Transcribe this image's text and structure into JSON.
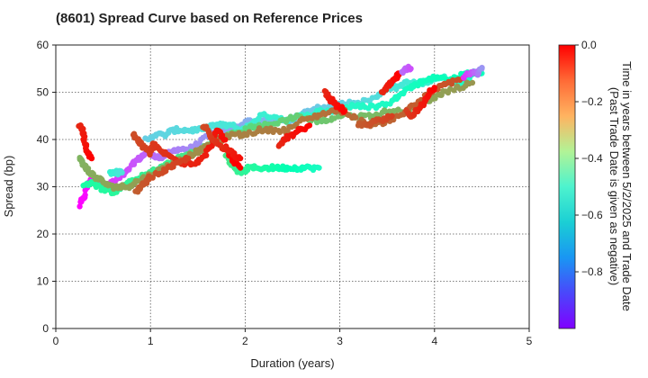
{
  "chart_data": {
    "type": "scatter",
    "title": "(8601)   Spread Curve based on Reference Prices",
    "xlabel": "Duration (years)",
    "ylabel": "Spread (bp)",
    "xlim": [
      0,
      5
    ],
    "ylim": [
      0,
      60
    ],
    "xticks": [
      "0",
      "1",
      "2",
      "3",
      "4",
      "5"
    ],
    "yticks": [
      "0",
      "10",
      "20",
      "30",
      "40",
      "50",
      "60"
    ],
    "grid": true,
    "colorbar": {
      "label_line1": "Time in years between 5/2/2025 and Trade Date",
      "label_line2": "(Past Trade Date is given as negative)",
      "range": [
        -1.0,
        0.0
      ],
      "ticks": [
        "0.0",
        "−0.2",
        "−0.4",
        "−0.6",
        "−0.8"
      ],
      "colormap": "rainbow"
    },
    "segments": [
      {
        "points": [
          [
            0.25,
            26
          ],
          [
            0.3,
            28
          ],
          [
            0.35,
            31
          ],
          [
            0.4,
            32
          ],
          [
            0.45,
            31
          ],
          [
            0.5,
            30
          ],
          [
            0.55,
            30
          ],
          [
            0.6,
            31
          ],
          [
            0.68,
            32
          ],
          [
            0.75,
            33
          ],
          [
            0.82,
            35
          ],
          [
            0.88,
            36
          ],
          [
            0.95,
            37
          ],
          [
            1.02,
            37
          ],
          [
            1.1,
            36
          ],
          [
            1.18,
            37
          ],
          [
            1.28,
            38
          ],
          [
            1.4,
            38
          ],
          [
            1.5,
            39
          ],
          [
            1.62,
            41
          ],
          [
            1.72,
            42
          ],
          [
            1.85,
            42
          ],
          [
            1.95,
            43
          ],
          [
            2.05,
            44
          ],
          [
            2.2,
            44
          ],
          [
            2.35,
            44
          ],
          [
            2.5,
            44
          ],
          [
            2.65,
            46
          ],
          [
            2.8,
            47
          ],
          [
            2.95,
            47
          ],
          [
            3.1,
            48
          ],
          [
            3.25,
            48
          ],
          [
            3.4,
            49
          ],
          [
            3.5,
            51
          ],
          [
            3.6,
            51
          ],
          [
            3.7,
            52
          ],
          [
            3.8,
            52
          ],
          [
            3.9,
            52
          ],
          [
            4.0,
            53
          ],
          [
            4.1,
            53
          ],
          [
            4.2,
            52
          ],
          [
            4.3,
            52
          ],
          [
            4.4,
            54
          ],
          [
            4.5,
            54
          ]
        ],
        "t_start": -1.0,
        "t_end": -0.55
      },
      {
        "points": [
          [
            0.95,
            40
          ],
          [
            1.05,
            41
          ],
          [
            1.15,
            41
          ],
          [
            1.25,
            42
          ],
          [
            1.35,
            42
          ],
          [
            1.45,
            42
          ],
          [
            1.55,
            42
          ],
          [
            1.65,
            43
          ],
          [
            1.75,
            43
          ],
          [
            1.85,
            43
          ],
          [
            1.95,
            42
          ],
          [
            2.05,
            43
          ],
          [
            2.15,
            45
          ],
          [
            2.3,
            45
          ],
          [
            2.45,
            44
          ],
          [
            2.6,
            45
          ],
          [
            2.8,
            46
          ],
          [
            2.95,
            46
          ],
          [
            3.1,
            47
          ],
          [
            3.25,
            47
          ],
          [
            3.4,
            47
          ],
          [
            3.55,
            48
          ],
          [
            3.65,
            50
          ],
          [
            3.75,
            51
          ],
          [
            3.85,
            52
          ],
          [
            3.95,
            53
          ],
          [
            4.05,
            53
          ],
          [
            4.2,
            53
          ],
          [
            4.35,
            54
          ],
          [
            4.48,
            54
          ]
        ],
        "t_start": -0.7,
        "t_end": -0.5
      },
      {
        "points": [
          [
            0.3,
            30
          ],
          [
            0.38,
            31
          ],
          [
            0.46,
            30
          ],
          [
            0.55,
            29
          ],
          [
            0.62,
            29
          ],
          [
            0.7,
            30
          ],
          [
            0.8,
            31
          ],
          [
            0.9,
            32
          ],
          [
            1.0,
            33
          ],
          [
            1.1,
            34
          ],
          [
            1.2,
            35
          ],
          [
            1.3,
            36
          ],
          [
            1.4,
            37
          ],
          [
            1.55,
            38
          ],
          [
            1.7,
            40
          ],
          [
            1.85,
            41
          ],
          [
            2.0,
            42
          ],
          [
            2.1,
            43
          ],
          [
            2.25,
            43
          ],
          [
            2.4,
            44
          ],
          [
            2.55,
            45
          ],
          [
            2.7,
            44
          ],
          [
            2.85,
            44
          ],
          [
            3.0,
            45
          ],
          [
            3.2,
            45
          ],
          [
            3.35,
            45
          ],
          [
            3.5,
            46
          ],
          [
            3.65,
            46
          ],
          [
            3.8,
            47
          ],
          [
            3.9,
            48
          ],
          [
            4.0,
            49
          ],
          [
            4.1,
            50
          ],
          [
            4.25,
            51
          ],
          [
            4.4,
            52
          ]
        ],
        "t_start": -0.45,
        "t_end": -0.2
      },
      {
        "points": [
          [
            1.8,
            37
          ],
          [
            1.85,
            35
          ],
          [
            1.9,
            34
          ],
          [
            1.95,
            33
          ],
          [
            2.05,
            34
          ],
          [
            2.15,
            34
          ],
          [
            2.25,
            34
          ],
          [
            2.35,
            34
          ],
          [
            2.45,
            34
          ],
          [
            2.55,
            34
          ],
          [
            2.65,
            34
          ],
          [
            2.78,
            34
          ]
        ],
        "t_start": -0.35,
        "t_end": -0.55
      },
      {
        "points": [
          [
            0.25,
            36
          ],
          [
            0.28,
            35
          ],
          [
            0.32,
            34
          ],
          [
            0.36,
            33
          ],
          [
            0.42,
            32
          ],
          [
            0.5,
            31
          ],
          [
            0.58,
            30
          ],
          [
            0.66,
            30
          ],
          [
            0.75,
            30
          ],
          [
            0.85,
            31
          ],
          [
            0.95,
            32
          ],
          [
            1.05,
            33
          ],
          [
            1.15,
            34
          ],
          [
            1.25,
            35
          ],
          [
            1.35,
            36
          ],
          [
            1.45,
            37
          ],
          [
            1.55,
            38
          ],
          [
            1.65,
            39
          ],
          [
            1.75,
            40
          ],
          [
            1.85,
            41
          ],
          [
            2.0,
            41
          ],
          [
            2.15,
            42
          ],
          [
            2.3,
            42
          ],
          [
            2.45,
            42
          ],
          [
            2.6,
            44
          ],
          [
            2.75,
            45
          ],
          [
            2.9,
            46
          ],
          [
            3.05,
            46
          ],
          [
            3.2,
            44
          ],
          [
            3.35,
            43
          ],
          [
            3.5,
            44
          ],
          [
            3.65,
            45
          ],
          [
            3.75,
            47
          ],
          [
            3.85,
            48
          ],
          [
            3.95,
            50
          ],
          [
            4.05,
            51
          ],
          [
            4.15,
            52
          ],
          [
            4.3,
            53
          ]
        ],
        "t_start": -0.25,
        "t_end": -0.1
      },
      {
        "points": [
          [
            0.25,
            43
          ],
          [
            0.28,
            42
          ],
          [
            0.3,
            40
          ],
          [
            0.32,
            38
          ],
          [
            0.35,
            37
          ],
          [
            0.38,
            36
          ]
        ],
        "t_start": -0.05,
        "t_end": 0.0
      },
      {
        "points": [
          [
            0.82,
            41
          ],
          [
            0.86,
            40
          ],
          [
            0.9,
            39
          ],
          [
            0.95,
            38
          ],
          [
            1.0,
            37
          ],
          [
            1.02,
            39
          ],
          [
            1.08,
            38
          ],
          [
            1.15,
            37
          ],
          [
            1.25,
            36
          ],
          [
            1.35,
            35
          ],
          [
            1.45,
            35
          ],
          [
            1.55,
            36
          ],
          [
            1.62,
            38
          ],
          [
            1.68,
            41
          ],
          [
            1.72,
            42
          ],
          [
            1.78,
            40
          ],
          [
            1.83,
            37
          ],
          [
            1.88,
            35
          ],
          [
            1.95,
            34
          ]
        ],
        "t_start": -0.1,
        "t_end": 0.0
      },
      {
        "points": [
          [
            0.85,
            29
          ],
          [
            0.9,
            30
          ],
          [
            0.95,
            31
          ],
          [
            1.0,
            32
          ],
          [
            1.1,
            33
          ],
          [
            1.2,
            34
          ],
          [
            1.3,
            35
          ],
          [
            1.4,
            36
          ]
        ],
        "t_start": -0.12,
        "t_end": -0.08
      },
      {
        "points": [
          [
            1.55,
            43
          ],
          [
            1.6,
            42
          ],
          [
            1.65,
            40
          ],
          [
            1.72,
            39
          ],
          [
            1.8,
            38
          ],
          [
            1.88,
            37
          ],
          [
            1.95,
            36
          ]
        ],
        "t_start": -0.1,
        "t_end": -0.02
      },
      {
        "points": [
          [
            2.35,
            39
          ],
          [
            2.42,
            40
          ],
          [
            2.5,
            41
          ],
          [
            2.58,
            42
          ],
          [
            2.68,
            43
          ]
        ],
        "t_start": -0.05,
        "t_end": 0.0
      },
      {
        "points": [
          [
            2.85,
            50
          ],
          [
            2.88,
            49
          ],
          [
            2.92,
            48
          ],
          [
            2.98,
            47
          ],
          [
            3.05,
            46
          ]
        ],
        "t_start": -0.05,
        "t_end": 0.0
      },
      {
        "points": [
          [
            3.45,
            50
          ],
          [
            3.5,
            51
          ],
          [
            3.55,
            52
          ],
          [
            3.6,
            53
          ],
          [
            3.62,
            54
          ]
        ],
        "t_start": -0.05,
        "t_end": 0.0
      },
      {
        "points": [
          [
            3.2,
            43
          ],
          [
            3.28,
            43
          ],
          [
            3.35,
            44
          ],
          [
            3.45,
            44
          ],
          [
            3.55,
            45
          ]
        ],
        "t_start": -0.12,
        "t_end": -0.08
      },
      {
        "points": [
          [
            3.7,
            46
          ],
          [
            3.75,
            45
          ],
          [
            3.8,
            46
          ],
          [
            3.85,
            47
          ],
          [
            3.9,
            48
          ],
          [
            3.95,
            50
          ],
          [
            4.0,
            51
          ]
        ],
        "t_start": -0.08,
        "t_end": 0.0
      },
      {
        "points": [
          [
            3.65,
            54
          ],
          [
            3.7,
            55
          ],
          [
            3.75,
            55
          ]
        ],
        "t_start": -0.85,
        "t_end": -0.9
      },
      {
        "points": [
          [
            4.3,
            53
          ],
          [
            4.38,
            54
          ],
          [
            4.45,
            54
          ],
          [
            4.5,
            55
          ]
        ],
        "t_start": -0.95,
        "t_end": -0.8
      },
      {
        "points": [
          [
            0.58,
            33
          ],
          [
            0.62,
            33
          ],
          [
            0.66,
            33
          ],
          [
            0.7,
            33
          ]
        ],
        "t_start": -0.6,
        "t_end": -0.65
      }
    ]
  }
}
